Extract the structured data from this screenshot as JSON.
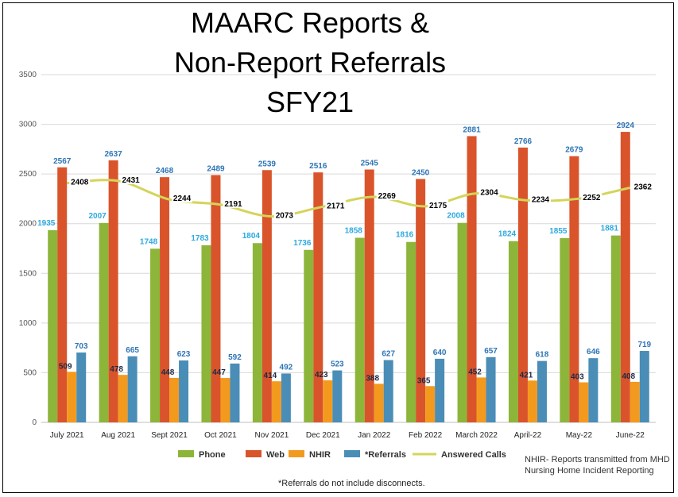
{
  "chart_data": {
    "type": "bar",
    "title": [
      "MAARC Reports &",
      "Non-Report Referrals",
      "SFY21"
    ],
    "categories": [
      "July 2021",
      "Aug 2021",
      "Sept 2021",
      "Oct 2021",
      "Nov 2021",
      "Dec 2021",
      "Jan 2022",
      "Feb 2022",
      "March 2022",
      "April-22",
      "May-22",
      "June-22"
    ],
    "ylim": [
      0,
      3500
    ],
    "yticks": [
      0,
      500,
      1000,
      1500,
      2000,
      2500,
      3000,
      3500
    ],
    "series": [
      {
        "name": "Phone",
        "type": "bar",
        "color": "#8DB53A",
        "label_color": "#2CA9E0",
        "values": [
          1935,
          2007,
          1748,
          1783,
          1804,
          1736,
          1858,
          1816,
          2008,
          1824,
          1855,
          1881
        ]
      },
      {
        "name": "Web",
        "type": "bar",
        "color": "#D9542B",
        "label_color": "#2E75B6",
        "values": [
          2567,
          2637,
          2468,
          2489,
          2539,
          2516,
          2545,
          2450,
          2881,
          2766,
          2679,
          2924
        ]
      },
      {
        "name": "NHIR",
        "type": "bar",
        "color": "#F39A1E",
        "label_color": "#1F2A44",
        "values": [
          509,
          478,
          448,
          447,
          414,
          423,
          388,
          365,
          452,
          421,
          403,
          408
        ]
      },
      {
        "name": "*Referrals",
        "type": "bar",
        "color": "#4A8DB7",
        "label_color": "#2E75B6",
        "values": [
          703,
          665,
          623,
          592,
          492,
          523,
          627,
          640,
          657,
          618,
          646,
          719
        ]
      },
      {
        "name": "Answered Calls",
        "type": "line",
        "color": "#D4D45A",
        "label_color": "#000000",
        "values": [
          2408,
          2431,
          2244,
          2191,
          2073,
          2171,
          2269,
          2175,
          2304,
          2234,
          2252,
          2362
        ]
      }
    ],
    "legend_position": "bottom",
    "grid": true
  },
  "notes": {
    "nhir_note": "NHIR- Reports transmitted from MHD Nursing Home Incident Reporting",
    "footnote": "*Referrals do not include disconnects."
  }
}
